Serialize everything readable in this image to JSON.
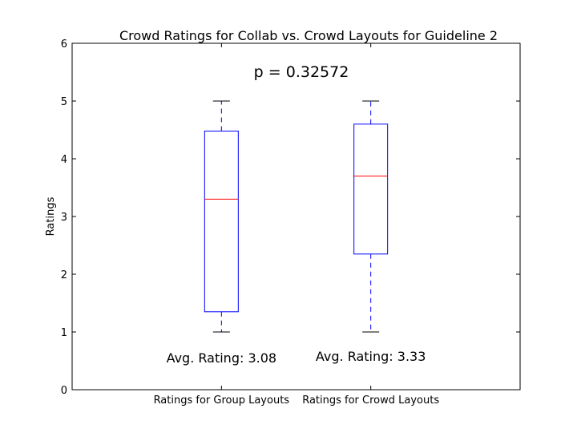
{
  "chart_data": {
    "type": "box",
    "title": "Crowd Ratings for Collab vs. Crowd Layouts for Guideline 2",
    "xlabel": "",
    "ylabel": "Ratings",
    "ylim": [
      0,
      6
    ],
    "yticks": [
      0,
      1,
      2,
      3,
      4,
      5,
      6
    ],
    "categories": [
      "Ratings for Group Layouts",
      "Ratings for Crowd Layouts"
    ],
    "boxes": [
      {
        "whisker_low": 1,
        "q1": 1.35,
        "median": 3.3,
        "q3": 4.48,
        "whisker_high": 5
      },
      {
        "whisker_low": 1,
        "q1": 2.35,
        "median": 3.7,
        "q3": 4.6,
        "whisker_high": 5
      }
    ],
    "annotations": {
      "p_value": "p = 0.32572",
      "avg_labels": [
        "Avg. Rating: 3.08",
        "Avg. Rating: 3.33"
      ]
    },
    "grid": false,
    "colors": {
      "box": "#0000ff",
      "median": "#ff0000",
      "cap": "#000000"
    }
  }
}
